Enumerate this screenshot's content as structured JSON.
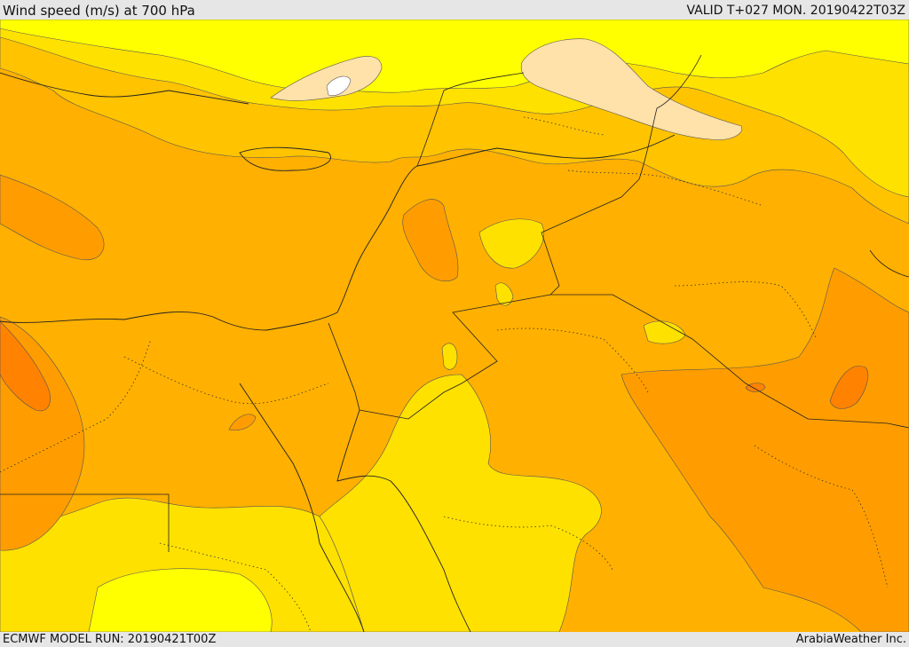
{
  "header": {
    "title": "Wind speed (m/s) at 700 hPa",
    "valid_time": "VALID T+027 MON. 20190422T03Z"
  },
  "footer": {
    "model_run": "ECMWF MODEL RUN: 20190421T00Z",
    "credit": "ArabiaWeather Inc."
  },
  "colors": {
    "lightest_yellow": "#ffff00",
    "yellow": "#ffe100",
    "gold": "#ffc300",
    "orange_light": "#ffb000",
    "orange": "#ff9d00",
    "orange_dark": "#ff8200",
    "peach": "#ffe1aa",
    "white": "#ffffff"
  }
}
